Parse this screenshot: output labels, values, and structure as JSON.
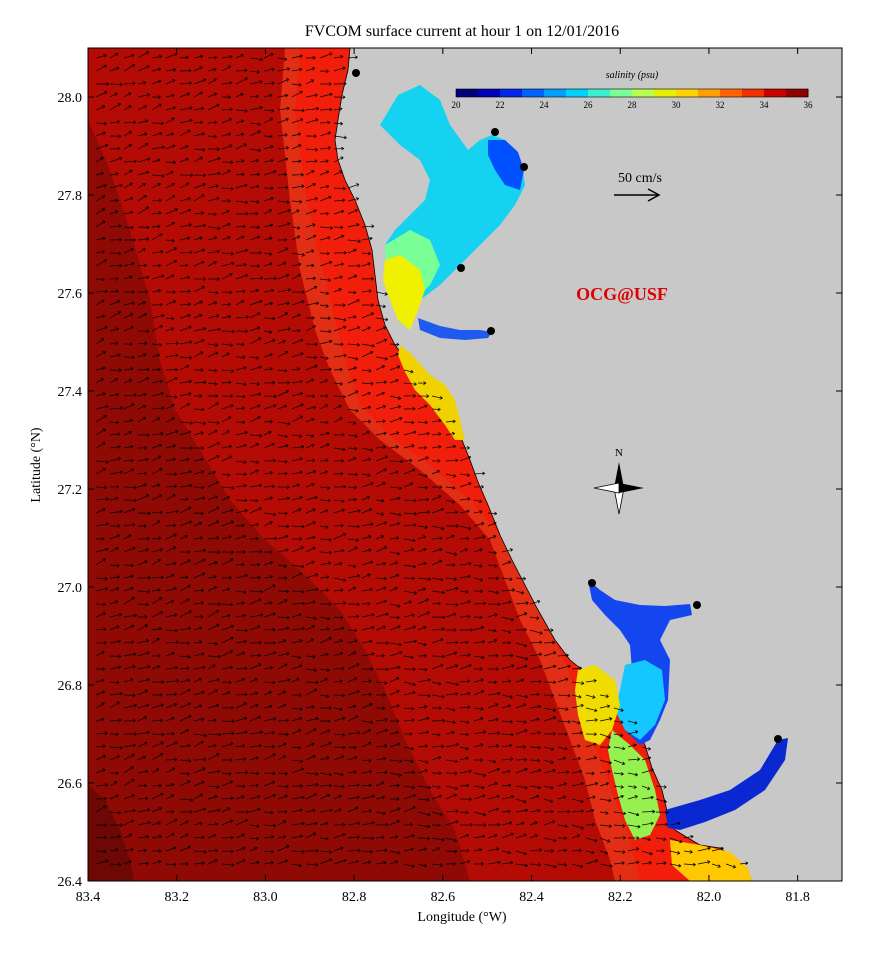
{
  "figure": {
    "title": "FVCOM surface current at hour 1 on 12/01/2016",
    "credit": "OCG@USF"
  },
  "axes": {
    "xlabel": "Longitude (°W)",
    "ylabel": "Latitude (°N)",
    "x_range": [
      83.4,
      81.7
    ],
    "y_range": [
      26.4,
      28.1
    ],
    "x_ticks": [
      "83.4",
      "83.2",
      "83.0",
      "82.8",
      "82.6",
      "82.4",
      "82.2",
      "82.0",
      "81.8"
    ],
    "y_ticks": [
      "28.0",
      "27.8",
      "27.6",
      "27.4",
      "27.2",
      "27.0",
      "26.8",
      "26.6",
      "26.4"
    ]
  },
  "colorbar": {
    "label": "salinity (psu)",
    "ticks": [
      "20",
      "22",
      "24",
      "26",
      "28",
      "30",
      "32",
      "34",
      "36"
    ],
    "colors": [
      "#00007a",
      "#0000b4",
      "#0028e6",
      "#0064ff",
      "#00a0ff",
      "#00d2ff",
      "#3cf0d2",
      "#78ff96",
      "#b4ff50",
      "#e6f000",
      "#ffd200",
      "#ffa000",
      "#ff6400",
      "#f03200",
      "#c80000",
      "#8c0000"
    ]
  },
  "scale_arrow": {
    "label": "50 cm/s"
  },
  "compass": {
    "label": "N"
  },
  "colors": {
    "land": "#c8c8c8",
    "shelf_inner": "#f01e0a",
    "shelf_mid": "#e12e14",
    "offshore": "#b50b05",
    "deep": "#8f0a04"
  }
}
